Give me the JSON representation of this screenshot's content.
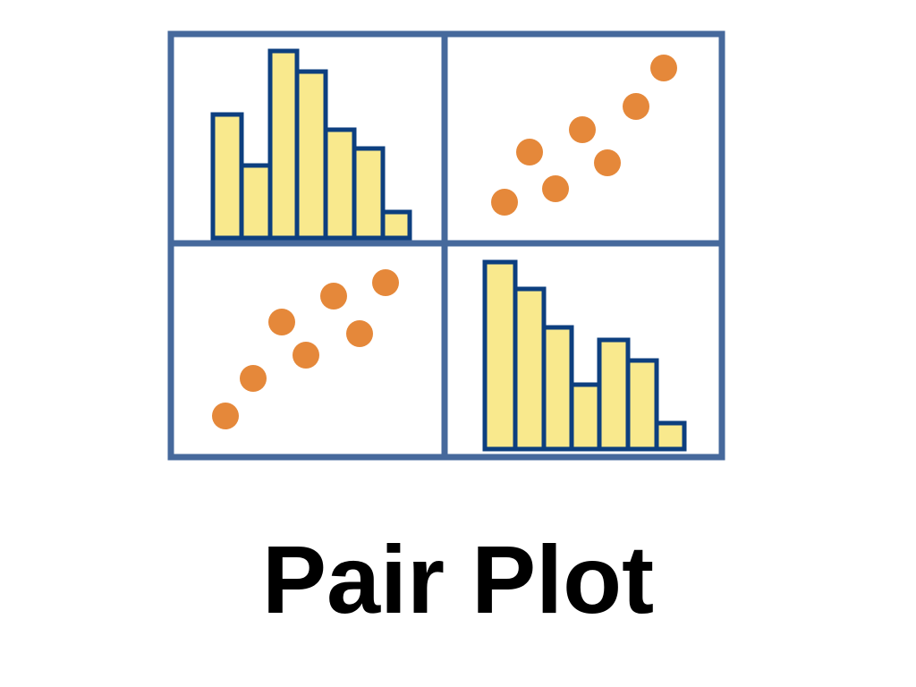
{
  "title": "Pair Plot"
}
